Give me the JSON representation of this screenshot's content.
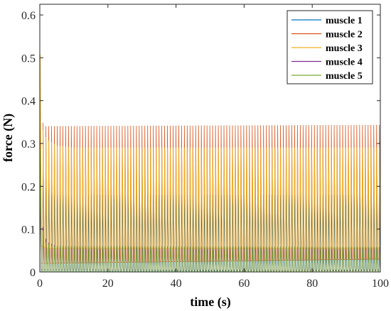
{
  "chart_data": {
    "type": "line",
    "title": "",
    "xlabel": "time (s)",
    "ylabel": "force (N)",
    "xlim": [
      0,
      100
    ],
    "ylim": [
      0,
      0.625
    ],
    "xticks": [
      0,
      20,
      40,
      60,
      80,
      100
    ],
    "yticks": [
      0,
      0.1,
      0.2,
      0.3,
      0.4,
      0.5,
      0.6
    ],
    "grid": false,
    "legend_position": "top-right",
    "oscillation_period_s": 0.83,
    "series": [
      {
        "name": "muscle 1",
        "color": "#0072BD",
        "peak": [
          [
            0,
            0.37
          ],
          [
            0.3,
            0.3
          ],
          [
            1.5,
            0.2
          ],
          [
            4,
            0.18
          ],
          [
            100,
            0.18
          ]
        ],
        "trough": [
          [
            0,
            0.0
          ],
          [
            100,
            0.005
          ]
        ]
      },
      {
        "name": "muscle 2",
        "color": "#D95319",
        "peak": [
          [
            0,
            0.38
          ],
          [
            0.3,
            0.37
          ],
          [
            0.8,
            0.35
          ],
          [
            1.5,
            0.34
          ],
          [
            100,
            0.343
          ]
        ],
        "trough": [
          [
            0,
            0.02
          ],
          [
            100,
            0.03
          ]
        ]
      },
      {
        "name": "muscle 3",
        "color": "#EDB120",
        "peak": [
          [
            0,
            0.6
          ],
          [
            0.2,
            0.45
          ],
          [
            0.6,
            0.34
          ],
          [
            2,
            0.31
          ],
          [
            5,
            0.295
          ],
          [
            10,
            0.29
          ],
          [
            100,
            0.29
          ]
        ],
        "trough": [
          [
            0,
            0.08
          ],
          [
            0.5,
            0.06
          ],
          [
            2,
            0.055
          ],
          [
            100,
            0.055
          ]
        ]
      },
      {
        "name": "muscle 4",
        "color": "#7E2F8E",
        "peak": [
          [
            0,
            0.2
          ],
          [
            0.5,
            0.12
          ],
          [
            2,
            0.07
          ],
          [
            5,
            0.06
          ],
          [
            100,
            0.058
          ]
        ],
        "trough": [
          [
            0,
            0.005
          ],
          [
            100,
            0.003
          ]
        ]
      },
      {
        "name": "muscle 5",
        "color": "#77AC30",
        "peak": [
          [
            0,
            0.62
          ],
          [
            0.1,
            0.3
          ],
          [
            0.4,
            0.12
          ],
          [
            1.5,
            0.07
          ],
          [
            4,
            0.06
          ],
          [
            100,
            0.058
          ]
        ],
        "trough": [
          [
            0,
            0.0
          ],
          [
            100,
            0.002
          ]
        ]
      }
    ]
  }
}
